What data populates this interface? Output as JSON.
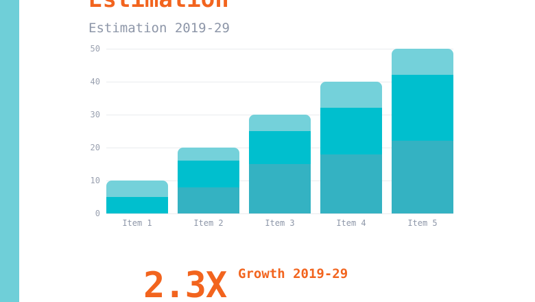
{
  "header": {
    "title": "Estimation",
    "subtitle": "Estimation 2019-29"
  },
  "footer": {
    "multiplier": "2.3X",
    "label": "Growth 2019-29"
  },
  "colors": {
    "accent_orange": "#F2641E",
    "sidebar_teal": "#6FCFD8",
    "subtitle_gray": "#8D96A8",
    "tick_gray": "#9AA1B0",
    "gridline_gray": "#E9EBEE",
    "background": "#FFFFFF",
    "bar_bottom_teal": "#34B2C2",
    "bar_middle_cyan": "#00BFCE",
    "bar_top_light": "#74D1DA"
  },
  "chart_data": {
    "type": "bar",
    "stacked": true,
    "title": "Estimation 2019-29",
    "categories": [
      "Item 1",
      "Item 2",
      "Item 3",
      "Item 4",
      "Item 5"
    ],
    "series": [
      {
        "name": "bottom",
        "color": "#34B2C2",
        "values": [
          0,
          8,
          15,
          18,
          22
        ]
      },
      {
        "name": "middle",
        "color": "#00BFCE",
        "values": [
          5,
          8,
          10,
          14,
          20
        ]
      },
      {
        "name": "top",
        "color": "#74D1DA",
        "values": [
          5,
          4,
          5,
          8,
          8
        ]
      }
    ],
    "totals": [
      10,
      20,
      30,
      40,
      50
    ],
    "xlabel": "",
    "ylabel": "",
    "ylim": [
      0,
      50
    ],
    "yticks": [
      0,
      10,
      20,
      30,
      40,
      50
    ],
    "grid": "horizontal",
    "legend": "none"
  }
}
